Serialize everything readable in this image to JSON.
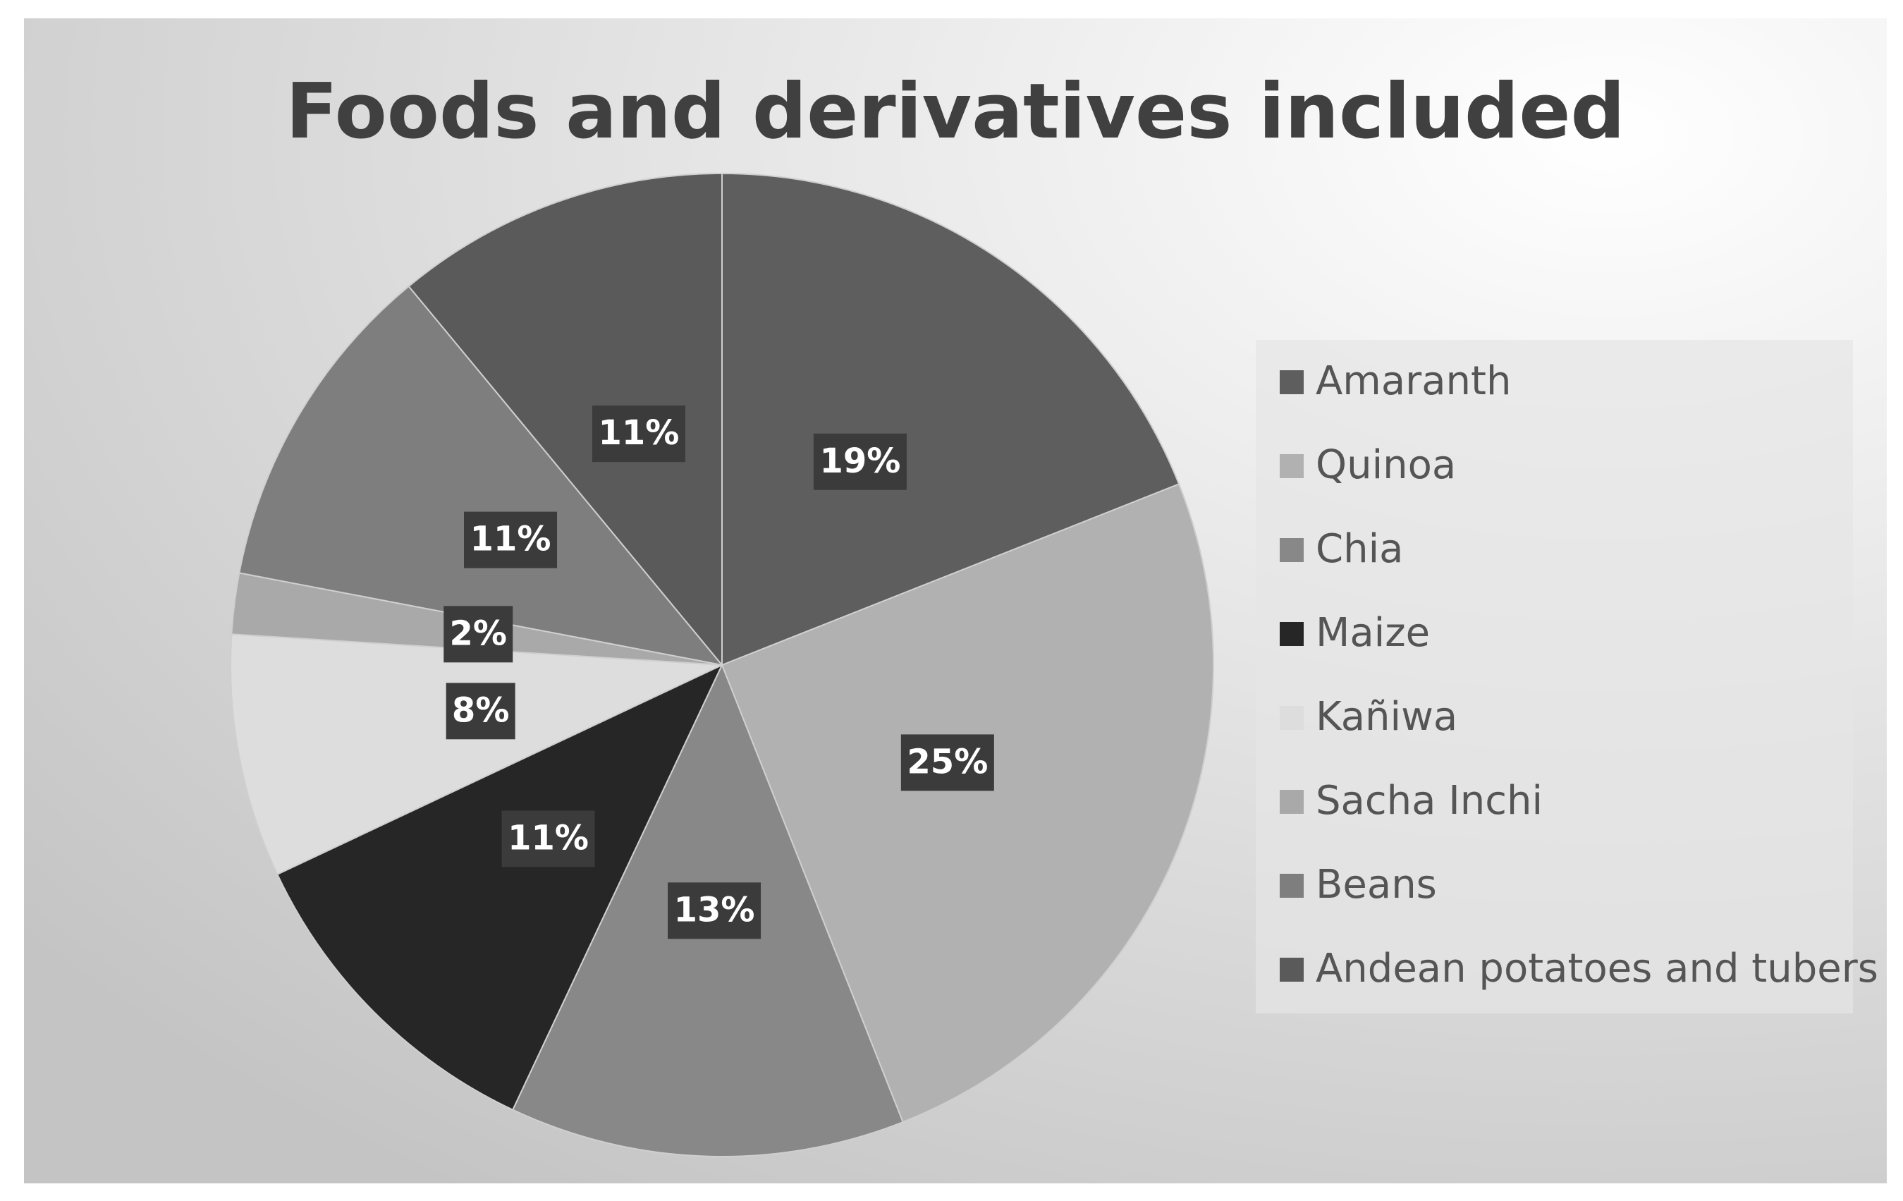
{
  "chart_data": {
    "type": "pie",
    "title": "Foods and derivatives included",
    "categories": [
      "Amaranth",
      "Quinoa",
      "Chia",
      "Maize",
      "Kañiwa",
      "Sacha Inchi",
      "Beans",
      "Andean potatoes and tubers"
    ],
    "values": [
      19,
      25,
      13,
      11,
      8,
      2,
      11,
      11
    ],
    "value_labels": [
      "19%",
      "25%",
      "13%",
      "11%",
      "8%",
      "2%",
      "11%",
      "11%"
    ],
    "colors": [
      "#5e5e5e",
      "#b1b1b1",
      "#888888",
      "#262626",
      "#dddddd",
      "#a9a9a9",
      "#7e7e7e",
      "#5a5a5a"
    ],
    "legend": "right"
  }
}
